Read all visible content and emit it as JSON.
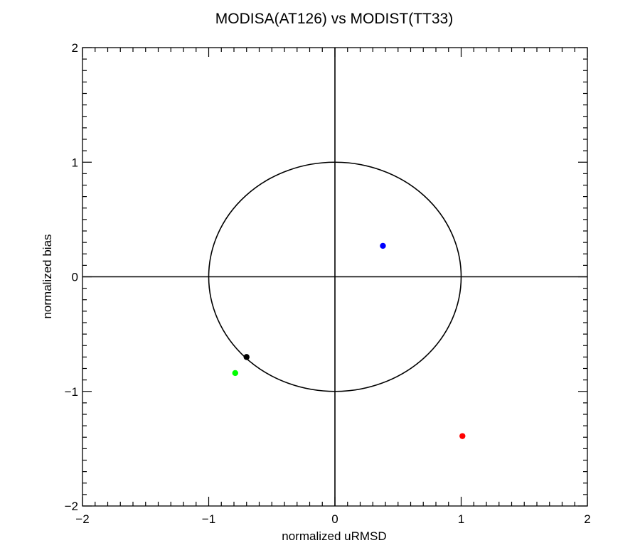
{
  "chart_data": {
    "type": "scatter",
    "title": "MODISA(AT126) vs MODIST(TT33)",
    "xlabel": "normalized uRMSD",
    "ylabel": "normalized bias",
    "xlim": [
      -2,
      2
    ],
    "ylim": [
      -2,
      2
    ],
    "xticks": [
      -2,
      -1,
      0,
      1,
      2
    ],
    "yticks": [
      -2,
      -1,
      0,
      1,
      2
    ],
    "xtick_labels": [
      "−2",
      "−1",
      "0",
      "1",
      "2"
    ],
    "ytick_labels": [
      "−2",
      "−1",
      "0",
      "1",
      "2"
    ],
    "minor_tick_step": 0.1,
    "grid": false,
    "reference_circle_radius": 1,
    "zero_lines": true,
    "points": [
      {
        "x": 0.38,
        "y": 0.27,
        "color": "#0000ff"
      },
      {
        "x": -0.7,
        "y": -0.7,
        "color": "#000000"
      },
      {
        "x": -0.79,
        "y": -0.84,
        "color": "#00ff00"
      },
      {
        "x": 1.01,
        "y": -1.39,
        "color": "#ff0000"
      }
    ]
  }
}
